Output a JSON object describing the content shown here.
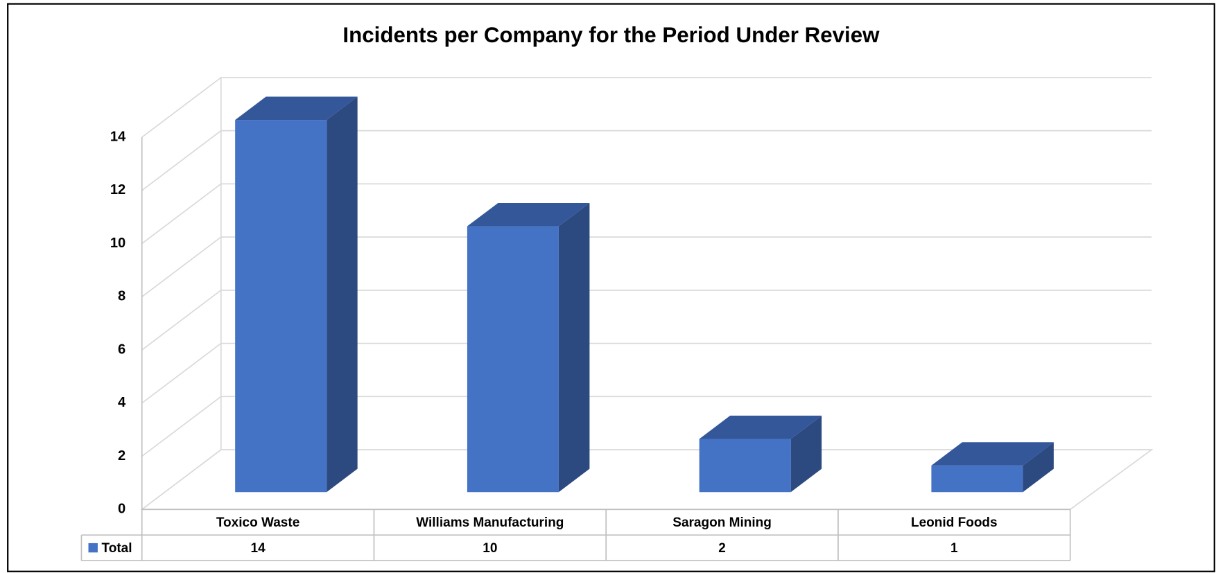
{
  "chart_data": {
    "type": "bar3d",
    "title": "Incidents per Company for the Period Under Review",
    "categories": [
      "Toxico Waste",
      "Williams Manufacturing",
      "Saragon Mining",
      "Leonid Foods"
    ],
    "series": [
      {
        "name": "Total",
        "color": "#4472c4",
        "values": [
          14,
          10,
          2,
          1
        ]
      }
    ],
    "ylim": [
      0,
      14
    ],
    "yticks": [
      0,
      2,
      4,
      6,
      8,
      10,
      12,
      14
    ],
    "grid": true,
    "data_table": true
  }
}
